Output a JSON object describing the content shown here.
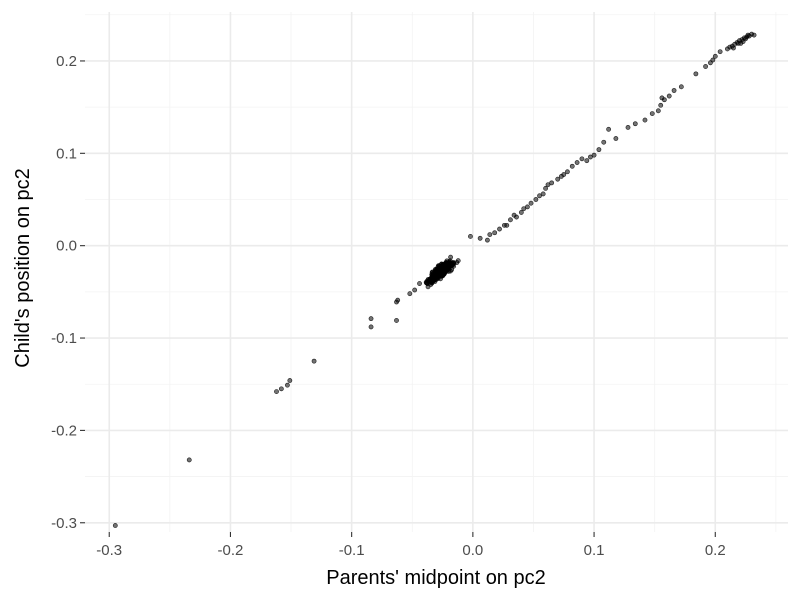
{
  "chart_data": {
    "type": "scatter",
    "title": "",
    "xlabel": "Parents' midpoint on pc2",
    "ylabel": "Child's position on pc2",
    "xlim": [
      -0.32,
      0.26
    ],
    "ylim": [
      -0.31,
      0.253
    ],
    "x_ticks": [
      -0.3,
      -0.2,
      -0.1,
      0.0,
      0.1,
      0.2
    ],
    "x_tick_labels": [
      "-0.3",
      "-0.2",
      "-0.1",
      "0.0",
      "0.1",
      "0.2"
    ],
    "y_ticks": [
      -0.3,
      -0.2,
      -0.1,
      0.0,
      0.1,
      0.2
    ],
    "y_tick_labels": [
      "-0.3",
      "-0.2",
      "-0.1",
      "0.0",
      "0.1",
      "0.2"
    ],
    "grid": true,
    "legend": "none",
    "point_color": "#000000",
    "series": [
      {
        "x": [
          -0.295,
          -0.234,
          -0.162,
          -0.158,
          -0.153,
          -0.151,
          -0.131,
          -0.084,
          -0.084,
          -0.063,
          -0.063,
          -0.062,
          -0.052,
          -0.048,
          -0.044,
          -0.002,
          0.006,
          0.012,
          0.014,
          0.018,
          0.022,
          0.026,
          0.028,
          0.031,
          0.034,
          0.036,
          0.04,
          0.042,
          0.045,
          0.048,
          0.052,
          0.055,
          0.058,
          0.06,
          0.062,
          0.065,
          0.07,
          0.073,
          0.075,
          0.078,
          0.082,
          0.086,
          0.09,
          0.094,
          0.097,
          0.1,
          0.104,
          0.108,
          0.112,
          0.118,
          0.128,
          0.134,
          0.142,
          0.148,
          0.153,
          0.155,
          0.156,
          0.158,
          0.162,
          0.166,
          0.172,
          0.184,
          0.192,
          0.196,
          0.198,
          0.2,
          0.204,
          0.21,
          0.212,
          0.214,
          0.216,
          0.218,
          0.22,
          0.221,
          0.222,
          0.224,
          0.225,
          0.226,
          0.227,
          0.228,
          0.23,
          0.232,
          0.215,
          0.219,
          0.223
        ],
        "y": [
          -0.303,
          -0.232,
          -0.158,
          -0.155,
          -0.151,
          -0.146,
          -0.125,
          -0.088,
          -0.079,
          -0.081,
          -0.061,
          -0.059,
          -0.052,
          -0.048,
          -0.041,
          0.01,
          0.008,
          0.006,
          0.012,
          0.014,
          0.018,
          0.022,
          0.022,
          0.028,
          0.033,
          0.031,
          0.036,
          0.04,
          0.042,
          0.046,
          0.05,
          0.054,
          0.056,
          0.062,
          0.066,
          0.068,
          0.072,
          0.075,
          0.077,
          0.08,
          0.086,
          0.09,
          0.094,
          0.092,
          0.096,
          0.098,
          0.104,
          0.112,
          0.126,
          0.116,
          0.128,
          0.132,
          0.136,
          0.143,
          0.146,
          0.152,
          0.16,
          0.158,
          0.162,
          0.168,
          0.172,
          0.186,
          0.194,
          0.198,
          0.201,
          0.205,
          0.21,
          0.213,
          0.215,
          0.216,
          0.218,
          0.22,
          0.222,
          0.219,
          0.223,
          0.225,
          0.224,
          0.226,
          0.228,
          0.227,
          0.229,
          0.228,
          0.214,
          0.219,
          0.221
        ]
      }
    ],
    "dense_cluster": {
      "description_of_values": "approximately 300 overlapping points along y = 1.02x - 0.001",
      "count": 300,
      "x_center": -0.027,
      "x_spread": 0.009,
      "x_min": -0.045,
      "x_max": 0.012,
      "slope": 1.02,
      "intercept": -0.001,
      "y_spread": 0.005
    }
  }
}
